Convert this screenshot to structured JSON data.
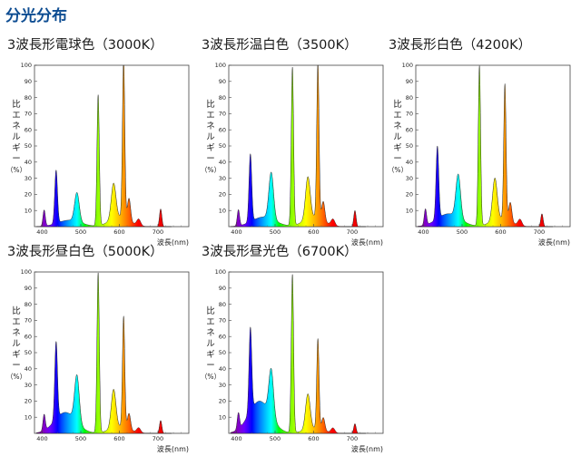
{
  "page_title": "分光分布",
  "chart_data": [
    {
      "type": "area",
      "title": "3波長形電球色（3000K）",
      "ylabel": [
        "比",
        "エ",
        "ネ",
        "ル",
        "ギ",
        "ー",
        "（%）"
      ],
      "xlabel": "波長(nm)",
      "ylim": [
        0,
        100
      ],
      "xlim": [
        380,
        780
      ],
      "yticks": [
        10,
        20,
        30,
        40,
        50,
        60,
        70,
        80,
        90,
        100
      ],
      "xticks": [
        400,
        500,
        600,
        700
      ],
      "peaks": [
        {
          "x": 405,
          "y": 10,
          "w": 3
        },
        {
          "x": 436,
          "y": 33,
          "w": 3.5
        },
        {
          "x": 490,
          "y": 18,
          "w": 6
        },
        {
          "x": 545,
          "y": 81,
          "w": 3
        },
        {
          "x": 585,
          "y": 22,
          "w": 6
        },
        {
          "x": 611,
          "y": 99,
          "w": 3
        },
        {
          "x": 625,
          "y": 14,
          "w": 4
        },
        {
          "x": 650,
          "y": 4,
          "w": 5
        },
        {
          "x": 707,
          "y": 11,
          "w": 3
        }
      ],
      "broad": [
        {
          "x": 470,
          "y": 4,
          "w": 30
        },
        {
          "x": 600,
          "y": 6,
          "w": 25
        }
      ]
    },
    {
      "type": "area",
      "title": "3波長形温白色（3500K）",
      "ylabel": [
        "比",
        "エ",
        "ネ",
        "ル",
        "ギ",
        "ー",
        "（%）"
      ],
      "xlabel": "波長(nm)",
      "ylim": [
        0,
        100
      ],
      "xlim": [
        380,
        780
      ],
      "yticks": [
        10,
        20,
        30,
        40,
        50,
        60,
        70,
        80,
        90,
        100
      ],
      "xticks": [
        400,
        500,
        600,
        700
      ],
      "peaks": [
        {
          "x": 405,
          "y": 10,
          "w": 3
        },
        {
          "x": 436,
          "y": 42,
          "w": 3.5
        },
        {
          "x": 490,
          "y": 29,
          "w": 6
        },
        {
          "x": 545,
          "y": 98,
          "w": 3
        },
        {
          "x": 585,
          "y": 26,
          "w": 6
        },
        {
          "x": 611,
          "y": 96,
          "w": 3
        },
        {
          "x": 625,
          "y": 12,
          "w": 4
        },
        {
          "x": 650,
          "y": 4,
          "w": 5
        },
        {
          "x": 707,
          "y": 10,
          "w": 3
        }
      ],
      "broad": [
        {
          "x": 470,
          "y": 6,
          "w": 30
        },
        {
          "x": 600,
          "y": 6,
          "w": 25
        }
      ]
    },
    {
      "type": "area",
      "title": "3波長形白色（4200K）",
      "ylabel": [
        "比",
        "エ",
        "ネ",
        "ル",
        "ギ",
        "ー",
        "（%）"
      ],
      "xlabel": "波長(nm)",
      "ylim": [
        0,
        100
      ],
      "xlim": [
        380,
        780
      ],
      "yticks": [
        10,
        20,
        30,
        40,
        50,
        60,
        70,
        80,
        90,
        100
      ],
      "xticks": [
        400,
        500,
        600,
        700
      ],
      "peaks": [
        {
          "x": 405,
          "y": 10,
          "w": 3
        },
        {
          "x": 436,
          "y": 45,
          "w": 3.5
        },
        {
          "x": 490,
          "y": 27,
          "w": 6
        },
        {
          "x": 545,
          "y": 99,
          "w": 3
        },
        {
          "x": 585,
          "y": 26,
          "w": 6
        },
        {
          "x": 611,
          "y": 84,
          "w": 3
        },
        {
          "x": 625,
          "y": 12,
          "w": 4
        },
        {
          "x": 650,
          "y": 4,
          "w": 5
        },
        {
          "x": 707,
          "y": 8,
          "w": 3
        }
      ],
      "broad": [
        {
          "x": 465,
          "y": 8,
          "w": 30
        },
        {
          "x": 600,
          "y": 5,
          "w": 25
        }
      ]
    },
    {
      "type": "area",
      "title": "3波長形昼白色（5000K）",
      "ylabel": [
        "比",
        "エ",
        "ネ",
        "ル",
        "ギ",
        "ー",
        "（%）"
      ],
      "xlabel": "波長(nm)",
      "ylim": [
        0,
        100
      ],
      "xlim": [
        380,
        780
      ],
      "yticks": [
        10,
        20,
        30,
        40,
        50,
        60,
        70,
        80,
        90,
        100
      ],
      "xticks": [
        400,
        500,
        600,
        700
      ],
      "peaks": [
        {
          "x": 405,
          "y": 10,
          "w": 3
        },
        {
          "x": 436,
          "y": 48,
          "w": 3.5
        },
        {
          "x": 490,
          "y": 29,
          "w": 6
        },
        {
          "x": 545,
          "y": 99,
          "w": 3
        },
        {
          "x": 585,
          "y": 24,
          "w": 6
        },
        {
          "x": 611,
          "y": 69,
          "w": 3
        },
        {
          "x": 625,
          "y": 10,
          "w": 4
        },
        {
          "x": 650,
          "y": 3,
          "w": 5
        },
        {
          "x": 707,
          "y": 8,
          "w": 3
        }
      ],
      "broad": [
        {
          "x": 460,
          "y": 13,
          "w": 28
        },
        {
          "x": 600,
          "y": 4,
          "w": 25
        }
      ]
    },
    {
      "type": "area",
      "title": "3波長形昼光色（6700K）",
      "ylabel": [
        "比",
        "エ",
        "ネ",
        "ル",
        "ギ",
        "ー",
        "（%）"
      ],
      "xlabel": "波長(nm)",
      "ylim": [
        0,
        100
      ],
      "xlim": [
        380,
        780
      ],
      "yticks": [
        10,
        20,
        30,
        40,
        50,
        60,
        70,
        80,
        90,
        100
      ],
      "xticks": [
        400,
        500,
        600,
        700
      ],
      "peaks": [
        {
          "x": 405,
          "y": 10,
          "w": 3
        },
        {
          "x": 436,
          "y": 52,
          "w": 3.5
        },
        {
          "x": 490,
          "y": 29,
          "w": 6
        },
        {
          "x": 545,
          "y": 98,
          "w": 3
        },
        {
          "x": 585,
          "y": 22,
          "w": 6
        },
        {
          "x": 611,
          "y": 56,
          "w": 3
        },
        {
          "x": 625,
          "y": 8,
          "w": 4
        },
        {
          "x": 650,
          "y": 3,
          "w": 5
        },
        {
          "x": 707,
          "y": 6,
          "w": 3
        }
      ],
      "broad": [
        {
          "x": 460,
          "y": 20,
          "w": 28
        },
        {
          "x": 600,
          "y": 3,
          "w": 25
        }
      ]
    }
  ]
}
